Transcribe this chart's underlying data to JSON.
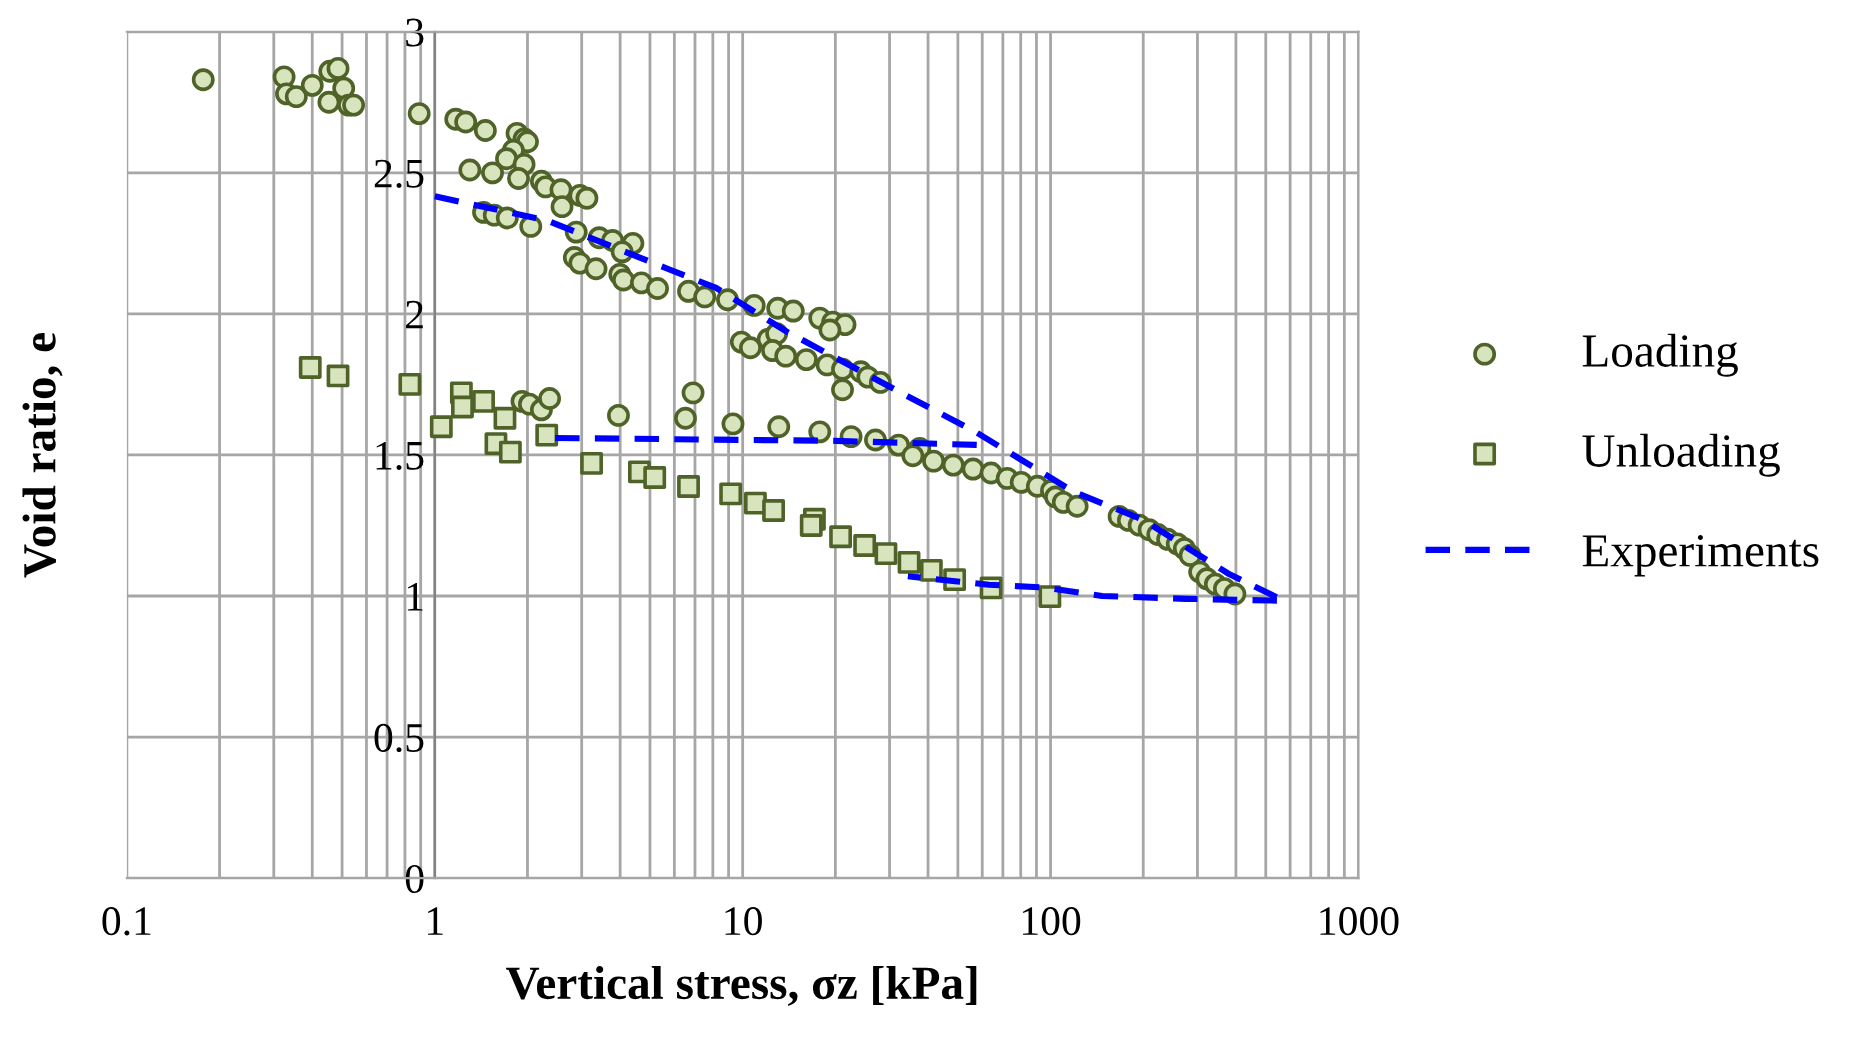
{
  "chart_data": {
    "type": "scatter",
    "xlabel": "Vertical stress, σz [kPa]",
    "ylabel": "Void ratio, e",
    "log": "x",
    "xlim": [
      0.1,
      1000
    ],
    "xticks": [
      0.1,
      1,
      10,
      100,
      1000
    ],
    "ylim": [
      0,
      3
    ],
    "yticks": [
      0,
      0.5,
      1,
      1.5,
      2,
      2.5,
      3
    ],
    "grid": true,
    "legend": "right",
    "series": [
      {
        "name": "Loading",
        "marker": "circle",
        "color": "#d7e4bd",
        "x": [
          0.177,
          0.324,
          0.33,
          0.355,
          0.4,
          0.456,
          0.485,
          0.506,
          0.453,
          0.525,
          0.545,
          0.89,
          1.17,
          1.26,
          1.46,
          1.85,
          1.95,
          2.0,
          1.8,
          1.71,
          1.95,
          1.3,
          1.54,
          1.87,
          2.22,
          2.29,
          2.57,
          2.96,
          3.12,
          2.59,
          1.44,
          1.56,
          1.72,
          2.05,
          2.88,
          3.42,
          3.78,
          4.4,
          4.06,
          2.84,
          2.96,
          3.34,
          3.99,
          4.1,
          4.69,
          5.29,
          6.67,
          7.53,
          8.93,
          10.9,
          13.0,
          14.6,
          9.9,
          10.6,
          12.1,
          12.9,
          12.5,
          13.8,
          1.92,
          2.03,
          2.22,
          2.36,
          3.95,
          6.52,
          6.9,
          9.3,
          13.1,
          17.8,
          19.6,
          21.5,
          19.2,
          16.1,
          18.8,
          21.1,
          24.2,
          25.5,
          28.0,
          21.1,
          17.8,
          22.5,
          27.0,
          32.1,
          37.6,
          35.7,
          41.7,
          48.3,
          56.0,
          64.1,
          72.3,
          80.3,
          90.6,
          100.7,
          103.8,
          110,
          122,
          167,
          179,
          194,
          209,
          223,
          240,
          258,
          272,
          284,
          305,
          322,
          343,
          367,
          397
        ],
        "values": [
          2.83,
          2.84,
          2.78,
          2.77,
          2.81,
          2.86,
          2.87,
          2.8,
          2.75,
          2.74,
          2.74,
          2.71,
          2.69,
          2.68,
          2.65,
          2.64,
          2.62,
          2.61,
          2.58,
          2.55,
          2.53,
          2.51,
          2.5,
          2.48,
          2.47,
          2.45,
          2.44,
          2.42,
          2.41,
          2.38,
          2.36,
          2.35,
          2.34,
          2.31,
          2.29,
          2.27,
          2.26,
          2.25,
          2.22,
          2.2,
          2.18,
          2.16,
          2.14,
          2.12,
          2.11,
          2.09,
          2.08,
          2.06,
          2.05,
          2.03,
          2.02,
          2.01,
          1.9,
          1.88,
          1.91,
          1.93,
          1.87,
          1.85,
          1.69,
          1.68,
          1.66,
          1.7,
          1.64,
          1.63,
          1.72,
          1.61,
          1.6,
          1.985,
          1.971,
          1.962,
          1.943,
          1.838,
          1.819,
          1.804,
          1.795,
          1.776,
          1.757,
          1.731,
          1.582,
          1.565,
          1.553,
          1.535,
          1.523,
          1.497,
          1.478,
          1.464,
          1.45,
          1.436,
          1.417,
          1.403,
          1.389,
          1.374,
          1.351,
          1.332,
          1.318,
          1.282,
          1.268,
          1.251,
          1.235,
          1.218,
          1.201,
          1.185,
          1.168,
          1.144,
          1.085,
          1.061,
          1.042,
          1.026,
          1.007
        ]
      },
      {
        "name": "Unloading",
        "marker": "square",
        "color": "#d7e4bd",
        "x": [
          0.394,
          0.485,
          0.83,
          1.05,
          1.22,
          1.23,
          1.44,
          1.69,
          1.58,
          1.76,
          2.31,
          3.23,
          4.62,
          5.18,
          6.67,
          9.14,
          11.0,
          12.6,
          17.1,
          16.7,
          20.8,
          24.9,
          29.2,
          34.7,
          41.0,
          48.8,
          64.1,
          99.5
        ],
        "values": [
          1.81,
          1.78,
          1.75,
          1.6,
          1.72,
          1.67,
          1.69,
          1.63,
          1.54,
          1.51,
          1.57,
          1.47,
          1.44,
          1.42,
          1.388,
          1.362,
          1.329,
          1.303,
          1.272,
          1.25,
          1.21,
          1.179,
          1.15,
          1.119,
          1.091,
          1.058,
          1.029,
          0.998
        ]
      },
      {
        "name": "Experiments",
        "type": "line",
        "marker": "none",
        "line_style": "dashed",
        "color": "#0000ff",
        "x": [
          1,
          2.33,
          5.7,
          8.2,
          13.9,
          33.8,
          57,
          119,
          200,
          377,
          573,
          275,
          147,
          96,
          63,
          34.4,
          null,
          2.46,
          20,
          60
        ],
        "values": [
          2.417,
          2.33,
          2.16,
          2.092,
          1.937,
          1.712,
          1.582,
          1.369,
          1.27,
          1.08,
          0.983,
          0.99,
          1.0,
          1.03,
          1.04,
          1.07,
          null,
          1.56,
          1.55,
          1.535
        ]
      }
    ]
  }
}
